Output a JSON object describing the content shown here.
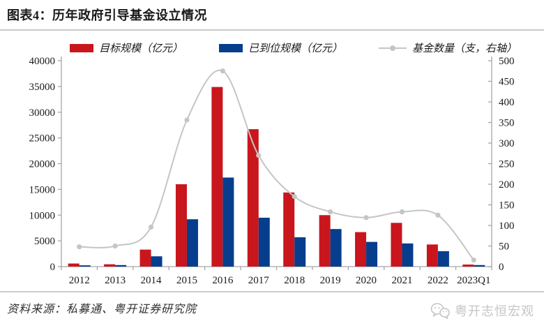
{
  "page": {
    "title": "图表4：历年政府引导基金设立情况",
    "source": "资料来源：私募通、粤开证券研究院",
    "watermark": "粤开志恒宏观"
  },
  "colors": {
    "target_red": "#c9161d",
    "paidin_blue": "#063e8d",
    "count_gray": "#c5c5c5",
    "axis_gray": "#a6a6a6"
  },
  "legend": [
    {
      "label": "目标规模（亿元）",
      "type": "bar",
      "color": "#c9161d"
    },
    {
      "label": "已到位规模（亿元）",
      "type": "bar",
      "color": "#063e8d"
    },
    {
      "label": "基金数量（支，右轴）",
      "type": "line",
      "color": "#c5c5c5"
    }
  ],
  "chart_data": {
    "type": "bar",
    "title": "历年政府引导基金设立情况",
    "categories": [
      "2012",
      "2013",
      "2014",
      "2015",
      "2016",
      "2017",
      "2018",
      "2019",
      "2020",
      "2021",
      "2022",
      "2023Q1"
    ],
    "series": [
      {
        "name": "目标规模（亿元）",
        "type": "bar",
        "axis": "left",
        "color": "#c9161d",
        "values": [
          600,
          450,
          3300,
          16000,
          34900,
          26700,
          14400,
          10000,
          6700,
          8500,
          4300,
          400
        ]
      },
      {
        "name": "已到位规模（亿元）",
        "type": "bar",
        "axis": "left",
        "color": "#063e8d",
        "values": [
          250,
          300,
          2000,
          9200,
          17300,
          9500,
          5700,
          7300,
          4800,
          4500,
          3000,
          300
        ]
      },
      {
        "name": "基金数量（支，右轴）",
        "type": "line",
        "axis": "right",
        "color": "#c5c5c5",
        "values": [
          48,
          50,
          96,
          356,
          475,
          270,
          170,
          133,
          119,
          133,
          125,
          16
        ]
      }
    ],
    "y_left": {
      "min": 0,
      "max": 40000,
      "step": 5000
    },
    "y_right": {
      "min": 0,
      "max": 500,
      "step": 50
    },
    "grid": false,
    "legend_position": "top"
  }
}
